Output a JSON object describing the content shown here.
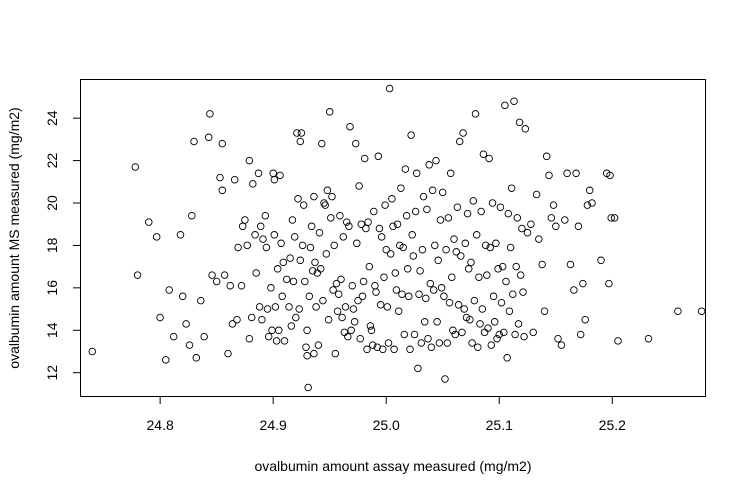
{
  "chart_data": {
    "type": "scatter",
    "title": "",
    "xlabel": "ovalbumin amount assay measured (mg/m2)",
    "ylabel": "ovalbumin amount MS measured (mg/m2)",
    "xlim": [
      24.73,
      24.282
    ],
    "ylim": [
      10.9,
      25.8
    ],
    "xticks": [
      "24.8",
      "24.9",
      "25.0",
      "25.1",
      "25.2"
    ],
    "yticks": [
      "12",
      "14",
      "16",
      "18",
      "20",
      "22",
      "24"
    ],
    "grid": false,
    "legend": "none",
    "marker": "open-circle",
    "color": "#000000",
    "points": [
      [
        24.74,
        13.0
      ],
      [
        24.778,
        21.7
      ],
      [
        24.78,
        16.6
      ],
      [
        24.79,
        19.1
      ],
      [
        24.797,
        18.4
      ],
      [
        24.8,
        14.6
      ],
      [
        24.805,
        12.6
      ],
      [
        24.808,
        15.9
      ],
      [
        24.812,
        13.7
      ],
      [
        24.818,
        18.5
      ],
      [
        24.82,
        15.6
      ],
      [
        24.823,
        14.3
      ],
      [
        24.826,
        13.3
      ],
      [
        24.828,
        19.4
      ],
      [
        24.83,
        22.9
      ],
      [
        24.832,
        12.7
      ],
      [
        24.836,
        15.4
      ],
      [
        24.839,
        13.7
      ],
      [
        24.843,
        23.1
      ],
      [
        24.844,
        24.2
      ],
      [
        24.846,
        16.6
      ],
      [
        24.85,
        16.3
      ],
      [
        24.853,
        21.2
      ],
      [
        24.855,
        22.8
      ],
      [
        24.855,
        20.6
      ],
      [
        24.857,
        16.6
      ],
      [
        24.86,
        12.9
      ],
      [
        24.862,
        16.1
      ],
      [
        24.864,
        14.3
      ],
      [
        24.866,
        21.1
      ],
      [
        24.868,
        14.5
      ],
      [
        24.869,
        17.9
      ],
      [
        24.872,
        16.1
      ],
      [
        24.873,
        18.9
      ],
      [
        24.875,
        19.2
      ],
      [
        24.877,
        18.0
      ],
      [
        24.879,
        22.0
      ],
      [
        24.879,
        13.6
      ],
      [
        24.881,
        14.6
      ],
      [
        24.882,
        20.9
      ],
      [
        24.884,
        18.5
      ],
      [
        24.885,
        16.7
      ],
      [
        24.887,
        21.4
      ],
      [
        24.888,
        15.1
      ],
      [
        24.889,
        18.9
      ],
      [
        24.89,
        14.5
      ],
      [
        24.891,
        18.3
      ],
      [
        24.893,
        19.4
      ],
      [
        24.894,
        17.9
      ],
      [
        24.895,
        15.0
      ],
      [
        24.896,
        13.7
      ],
      [
        24.898,
        16.0
      ],
      [
        24.899,
        14.0
      ],
      [
        24.9,
        21.4
      ],
      [
        24.901,
        21.1
      ],
      [
        24.901,
        18.5
      ],
      [
        24.902,
        15.1
      ],
      [
        24.903,
        13.5
      ],
      [
        24.904,
        16.9
      ],
      [
        24.905,
        14.0
      ],
      [
        24.906,
        21.3
      ],
      [
        24.907,
        18.1
      ],
      [
        24.908,
        15.6
      ],
      [
        24.909,
        17.2
      ],
      [
        24.91,
        13.5
      ],
      [
        24.912,
        16.4
      ],
      [
        24.914,
        15.1
      ],
      [
        24.915,
        17.4
      ],
      [
        24.916,
        14.2
      ],
      [
        24.917,
        19.2
      ],
      [
        24.918,
        16.3
      ],
      [
        24.919,
        18.4
      ],
      [
        24.92,
        14.6
      ],
      [
        24.921,
        23.3
      ],
      [
        24.922,
        20.2
      ],
      [
        24.923,
        15.0
      ],
      [
        24.924,
        22.9
      ],
      [
        24.924,
        17.3
      ],
      [
        24.925,
        23.3
      ],
      [
        24.926,
        18.0
      ],
      [
        24.927,
        19.9
      ],
      [
        24.928,
        16.3
      ],
      [
        24.929,
        13.2
      ],
      [
        24.93,
        12.8
      ],
      [
        24.93,
        14.0
      ],
      [
        24.931,
        11.3
      ],
      [
        24.932,
        15.6
      ],
      [
        24.933,
        17.9
      ],
      [
        24.934,
        18.9
      ],
      [
        24.935,
        16.8
      ],
      [
        24.936,
        20.3
      ],
      [
        24.936,
        12.9
      ],
      [
        24.937,
        17.2
      ],
      [
        24.938,
        15.1
      ],
      [
        24.939,
        16.7
      ],
      [
        24.94,
        13.3
      ],
      [
        24.941,
        18.6
      ],
      [
        24.942,
        16.9
      ],
      [
        24.943,
        22.8
      ],
      [
        24.944,
        15.4
      ],
      [
        24.945,
        20.0
      ],
      [
        24.946,
        19.9
      ],
      [
        24.947,
        17.6
      ],
      [
        24.948,
        20.6
      ],
      [
        24.949,
        14.5
      ],
      [
        24.95,
        24.3
      ],
      [
        24.951,
        19.3
      ],
      [
        24.952,
        20.3
      ],
      [
        24.953,
        15.9
      ],
      [
        24.954,
        18.0
      ],
      [
        24.955,
        12.9
      ],
      [
        24.956,
        16.2
      ],
      [
        24.957,
        14.9
      ],
      [
        24.958,
        15.7
      ],
      [
        24.959,
        19.4
      ],
      [
        24.96,
        16.4
      ],
      [
        24.961,
        14.6
      ],
      [
        24.962,
        18.4
      ],
      [
        24.963,
        13.9
      ],
      [
        24.964,
        15.1
      ],
      [
        24.965,
        19.1
      ],
      [
        24.966,
        13.7
      ],
      [
        24.967,
        18.9
      ],
      [
        24.968,
        23.6
      ],
      [
        24.969,
        14.0
      ],
      [
        24.97,
        16.1
      ],
      [
        24.971,
        15.0
      ],
      [
        24.972,
        14.4
      ],
      [
        24.973,
        22.8
      ],
      [
        24.974,
        18.1
      ],
      [
        24.975,
        15.4
      ],
      [
        24.976,
        20.8
      ],
      [
        24.977,
        13.6
      ],
      [
        24.978,
        19.0
      ],
      [
        24.979,
        15.6
      ],
      [
        24.98,
        16.3
      ],
      [
        24.981,
        22.1
      ],
      [
        24.982,
        18.8
      ],
      [
        24.983,
        13.1
      ],
      [
        24.984,
        19.1
      ],
      [
        24.985,
        17.0
      ],
      [
        24.986,
        14.2
      ],
      [
        24.987,
        14.0
      ],
      [
        24.988,
        13.3
      ],
      [
        24.989,
        19.6
      ],
      [
        24.99,
        16.1
      ],
      [
        24.991,
        15.8
      ],
      [
        24.992,
        13.2
      ],
      [
        24.993,
        22.2
      ],
      [
        24.994,
        18.8
      ],
      [
        24.995,
        15.2
      ],
      [
        24.996,
        18.4
      ],
      [
        24.997,
        13.1
      ],
      [
        24.998,
        16.5
      ],
      [
        24.999,
        19.9
      ],
      [
        25.0,
        17.8
      ],
      [
        25.001,
        15.1
      ],
      [
        25.002,
        13.4
      ],
      [
        25.003,
        25.4
      ],
      [
        25.004,
        17.6
      ],
      [
        25.005,
        20.2
      ],
      [
        25.006,
        18.9
      ],
      [
        25.007,
        13.1
      ],
      [
        25.008,
        16.7
      ],
      [
        25.009,
        15.9
      ],
      [
        25.01,
        19.0
      ],
      [
        25.011,
        14.9
      ],
      [
        25.012,
        18.0
      ],
      [
        25.013,
        20.7
      ],
      [
        25.014,
        15.7
      ],
      [
        25.015,
        17.9
      ],
      [
        25.016,
        13.8
      ],
      [
        25.017,
        21.6
      ],
      [
        25.018,
        19.4
      ],
      [
        25.019,
        16.9
      ],
      [
        25.02,
        15.6
      ],
      [
        25.021,
        13.1
      ],
      [
        25.022,
        23.2
      ],
      [
        25.023,
        18.5
      ],
      [
        25.024,
        17.5
      ],
      [
        25.025,
        13.8
      ],
      [
        25.026,
        19.6
      ],
      [
        25.027,
        21.4
      ],
      [
        25.028,
        12.2
      ],
      [
        25.029,
        15.7
      ],
      [
        25.03,
        16.8
      ],
      [
        25.031,
        13.4
      ],
      [
        25.032,
        17.8
      ],
      [
        25.033,
        20.3
      ],
      [
        25.034,
        14.4
      ],
      [
        25.035,
        15.5
      ],
      [
        25.036,
        19.7
      ],
      [
        25.037,
        13.6
      ],
      [
        25.038,
        21.8
      ],
      [
        25.039,
        16.2
      ],
      [
        25.04,
        13.2
      ],
      [
        25.041,
        20.6
      ],
      [
        25.042,
        15.9
      ],
      [
        25.043,
        18.0
      ],
      [
        25.044,
        22.0
      ],
      [
        25.045,
        14.4
      ],
      [
        25.046,
        17.3
      ],
      [
        25.047,
        13.4
      ],
      [
        25.048,
        19.2
      ],
      [
        25.049,
        16.0
      ],
      [
        25.05,
        20.5
      ],
      [
        25.051,
        15.6
      ],
      [
        25.052,
        11.7
      ],
      [
        25.053,
        17.8
      ],
      [
        25.054,
        13.4
      ],
      [
        25.055,
        19.3
      ],
      [
        25.056,
        15.3
      ],
      [
        25.057,
        21.4
      ],
      [
        25.058,
        16.5
      ],
      [
        25.059,
        14.0
      ],
      [
        25.06,
        18.3
      ],
      [
        25.061,
        13.8
      ],
      [
        25.062,
        17.7
      ],
      [
        25.063,
        19.8
      ],
      [
        25.064,
        15.2
      ],
      [
        25.065,
        22.9
      ],
      [
        25.066,
        17.5
      ],
      [
        25.067,
        13.9
      ],
      [
        25.068,
        23.3
      ],
      [
        25.069,
        15.0
      ],
      [
        25.07,
        18.1
      ],
      [
        25.071,
        14.6
      ],
      [
        25.072,
        19.5
      ],
      [
        25.073,
        16.9
      ],
      [
        25.074,
        14.5
      ],
      [
        25.075,
        17.2
      ],
      [
        25.076,
        13.4
      ],
      [
        25.077,
        20.1
      ],
      [
        25.078,
        15.4
      ],
      [
        25.079,
        24.2
      ],
      [
        25.08,
        18.5
      ],
      [
        25.081,
        13.2
      ],
      [
        25.082,
        16.5
      ],
      [
        25.083,
        14.3
      ],
      [
        25.084,
        19.6
      ],
      [
        25.085,
        15.0
      ],
      [
        25.086,
        22.3
      ],
      [
        25.087,
        13.9
      ],
      [
        25.088,
        18.0
      ],
      [
        25.089,
        16.6
      ],
      [
        25.09,
        14.1
      ],
      [
        25.091,
        22.1
      ],
      [
        25.092,
        17.9
      ],
      [
        25.093,
        13.3
      ],
      [
        25.094,
        20.0
      ],
      [
        25.095,
        15.6
      ],
      [
        25.096,
        14.4
      ],
      [
        25.097,
        18.1
      ],
      [
        25.098,
        13.6
      ],
      [
        25.099,
        16.9
      ],
      [
        25.1,
        13.8
      ],
      [
        25.101,
        19.8
      ],
      [
        25.102,
        15.3
      ],
      [
        25.103,
        17.0
      ],
      [
        25.104,
        13.9
      ],
      [
        25.105,
        24.6
      ],
      [
        25.106,
        16.3
      ],
      [
        25.107,
        12.7
      ],
      [
        25.108,
        19.5
      ],
      [
        25.109,
        14.9
      ],
      [
        25.11,
        17.9
      ],
      [
        25.111,
        20.7
      ],
      [
        25.112,
        15.7
      ],
      [
        25.113,
        24.8
      ],
      [
        25.114,
        13.8
      ],
      [
        25.115,
        17.0
      ],
      [
        25.116,
        19.3
      ],
      [
        25.117,
        14.3
      ],
      [
        25.118,
        23.8
      ],
      [
        25.119,
        16.6
      ],
      [
        25.12,
        18.8
      ],
      [
        25.121,
        15.8
      ],
      [
        25.122,
        13.7
      ],
      [
        25.123,
        23.5
      ],
      [
        25.125,
        18.6
      ],
      [
        25.128,
        19.0
      ],
      [
        25.13,
        13.9
      ],
      [
        25.133,
        20.4
      ],
      [
        25.135,
        18.3
      ],
      [
        25.138,
        17.1
      ],
      [
        25.14,
        14.9
      ],
      [
        25.142,
        22.2
      ],
      [
        25.144,
        21.3
      ],
      [
        25.146,
        19.3
      ],
      [
        25.148,
        19.9
      ],
      [
        25.15,
        18.9
      ],
      [
        25.152,
        13.6
      ],
      [
        25.155,
        13.3
      ],
      [
        25.158,
        19.2
      ],
      [
        25.16,
        21.4
      ],
      [
        25.163,
        17.1
      ],
      [
        25.166,
        15.9
      ],
      [
        25.168,
        21.4
      ],
      [
        25.17,
        18.9
      ],
      [
        25.172,
        13.8
      ],
      [
        25.174,
        16.2
      ],
      [
        25.176,
        14.5
      ],
      [
        25.178,
        19.9
      ],
      [
        25.18,
        20.6
      ],
      [
        25.182,
        20.0
      ],
      [
        25.19,
        17.3
      ],
      [
        25.195,
        21.4
      ],
      [
        25.197,
        16.2
      ],
      [
        25.198,
        21.3
      ],
      [
        25.199,
        19.3
      ],
      [
        25.202,
        19.3
      ],
      [
        25.205,
        13.5
      ],
      [
        25.232,
        13.6
      ],
      [
        25.258,
        14.9
      ],
      [
        25.279,
        14.9
      ]
    ]
  }
}
